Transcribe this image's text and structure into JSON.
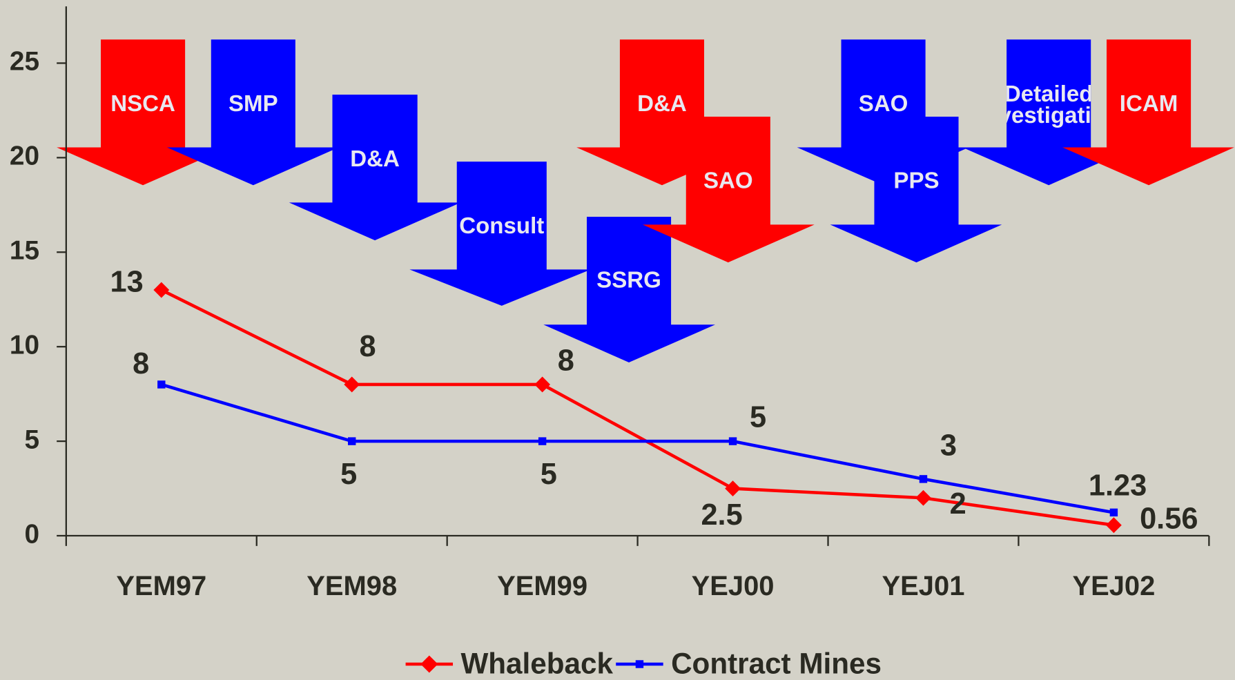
{
  "chart_data": {
    "type": "line",
    "categories": [
      "YEM97",
      "YEM98",
      "YEM99",
      "YEJ00",
      "YEJ01",
      "YEJ02"
    ],
    "series": [
      {
        "name": "Whaleback",
        "color": "#ff0000",
        "marker": "diamond",
        "values": [
          13,
          8,
          8,
          2.5,
          2,
          0.56
        ]
      },
      {
        "name": "Contract Mines",
        "color": "#0000ff",
        "marker": "square",
        "values": [
          8,
          5,
          5,
          5,
          3,
          1.23
        ]
      }
    ],
    "ylim": [
      0,
      28
    ],
    "yticks": [
      0,
      5,
      10,
      15,
      20,
      25
    ],
    "grid": false,
    "legend": "bottom",
    "annotations": [
      {
        "text": [
          "NSCA"
        ],
        "color": "#ff0000"
      },
      {
        "text": [
          "SMP"
        ],
        "color": "#0000ff"
      },
      {
        "text": [
          "D&A"
        ],
        "color": "#0000ff"
      },
      {
        "text": [
          "Consult"
        ],
        "color": "#0000ff"
      },
      {
        "text": [
          "SSRG"
        ],
        "color": "#0000ff"
      },
      {
        "text": [
          "D&A"
        ],
        "color": "#ff0000"
      },
      {
        "text": [
          "SAO"
        ],
        "color": "#ff0000"
      },
      {
        "text": [
          "SAO"
        ],
        "color": "#0000ff"
      },
      {
        "text": [
          "PPS"
        ],
        "color": "#0000ff"
      },
      {
        "text": [
          "Detailed",
          "Investigation"
        ],
        "color": "#0000ff"
      },
      {
        "text": [
          "ICAM"
        ],
        "color": "#ff0000"
      }
    ]
  }
}
